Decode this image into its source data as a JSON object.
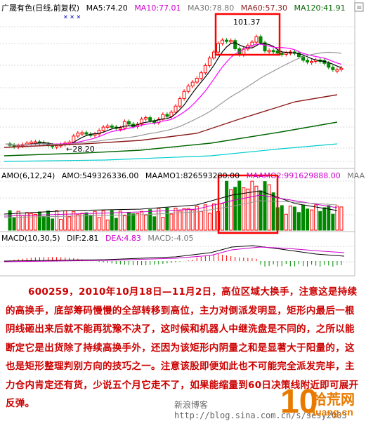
{
  "price_panel": {
    "header": {
      "title": "广晟有色(日线,前复权)",
      "ma5": "MA5:74.20",
      "ma10": "MA10:77.01",
      "ma30": "MA30:78.80",
      "ma60": "MA60:57.30",
      "ma120": "MA120:41.91"
    },
    "high_label": "101.37",
    "low_label": "←28.20",
    "colors": {
      "up": "#ff0000",
      "down": "#008800",
      "ma5": "#000000",
      "ma10": "#ff00ff",
      "ma30": "#999999",
      "ma60": "#8b1a1a",
      "ma120": "#006600",
      "box": "#ff0000"
    }
  },
  "volume_panel": {
    "header": {
      "title": "AMO(6,12,24)",
      "amo": "AMO:549326336.00",
      "maamo1": "MAAMO1:826593280.00",
      "maamo2": "MAAMO2:991629888.00",
      "maamo3": "MAA"
    }
  },
  "macd_panel": {
    "header": {
      "title": "MACD(10,30,5)",
      "dif": "DIF:2.81",
      "dea": "DEA:4.83",
      "macd": "MACD:-4.05"
    }
  },
  "article": {
    "text": "600259，2010年10月18日—11月2日，高位区域大换手，注意这是持续的高换手，底部筹码慢慢的全部转移到高位，主力对倒派发明显，矩形内最后一根阴线砸出来后就不能再犹豫不决了，这时候和机器人中继洗盘是不同的，之所以能断定它是出货除了持续高换手外，还因为该矩形内阴量之和是显著大于阳量的，这也是矩形整理判别方向的技巧之一。注意该股即便如此也不可能完全派发完毕，主力仓内肯定还有货，少说五个月它走不了，如果能缩量到60日决策线附近即可展开反弹。"
  },
  "watermark": "新浪博客 http://blog.sina.com.cn/s/sesy2003",
  "logo": {
    "digits": "10",
    "name": "拾荒网",
    "domain": "Huang.cn"
  }
}
